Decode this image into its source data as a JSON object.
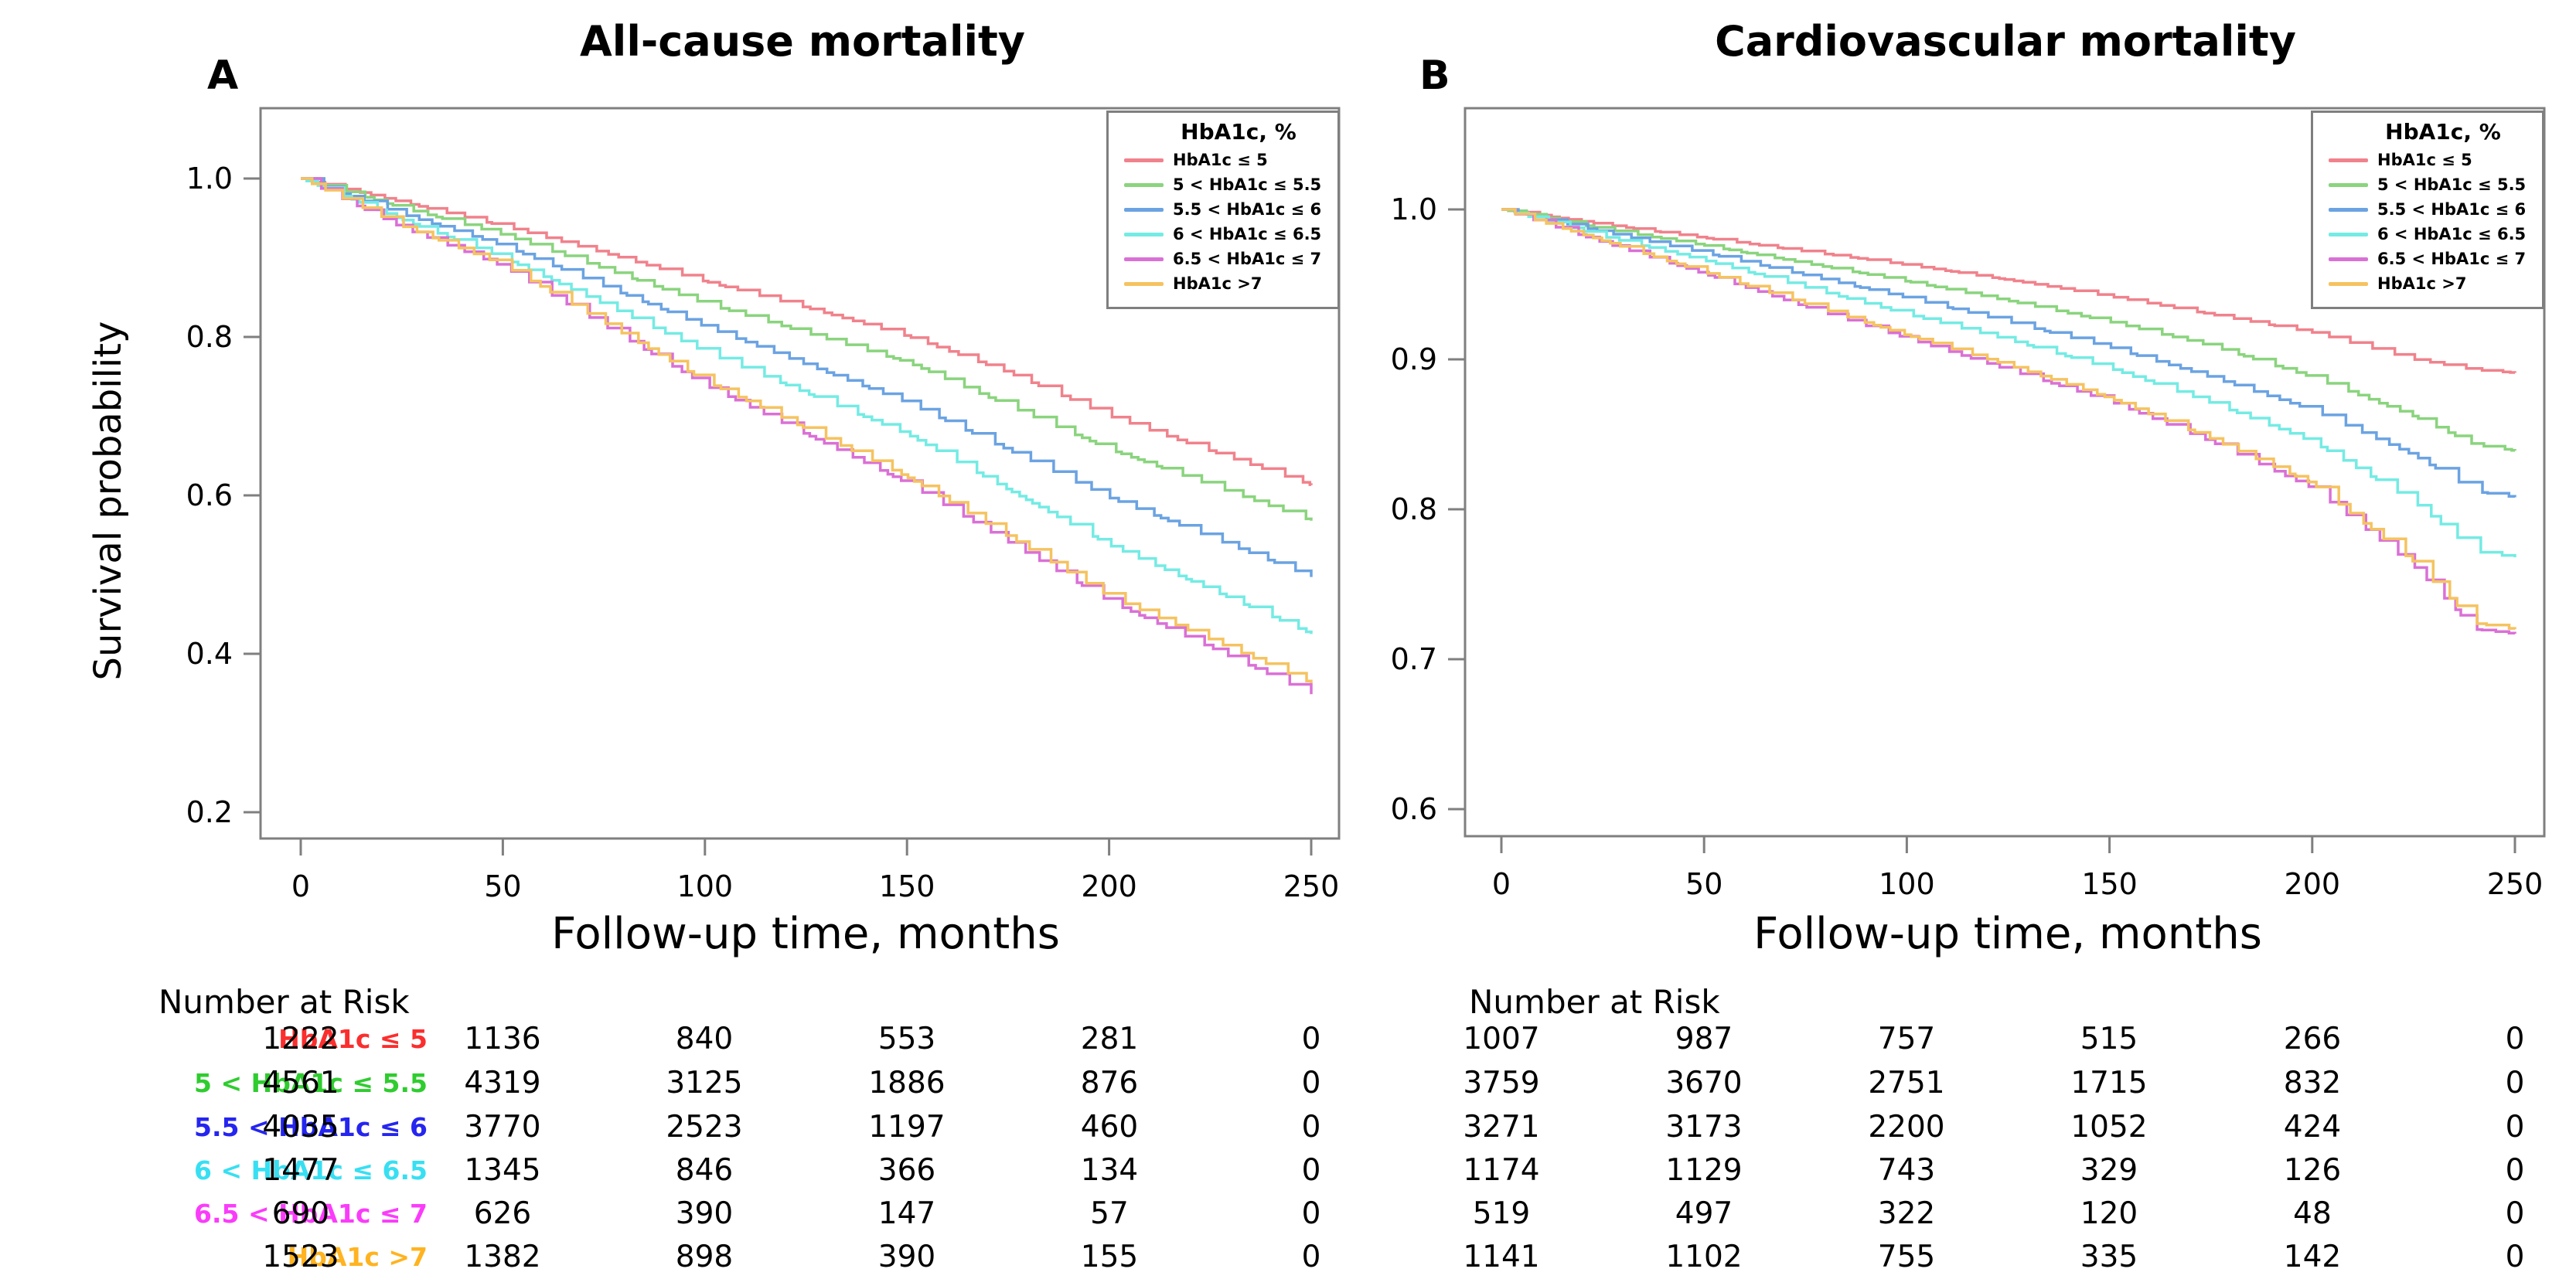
{
  "figure": {
    "background": "#ffffff",
    "frame_color": "#7f7f7f",
    "text_color": "#000000",
    "panels": [
      {
        "label": "A",
        "title": "All-cause mortality"
      },
      {
        "label": "B",
        "title": "Cardiovascular mortality"
      }
    ]
  },
  "legend": {
    "title": "HbA1c, %",
    "entries": [
      {
        "label": "HbA1c ≤ 5",
        "line_color": "#f0828c",
        "table_color": "#fb2e2e"
      },
      {
        "label": "5 < HbA1c ≤ 5.5",
        "line_color": "#8ad47e",
        "table_color": "#2fcc2f"
      },
      {
        "label": "5.5 < HbA1c ≤ 6",
        "line_color": "#6ba3e2",
        "table_color": "#2525f0"
      },
      {
        "label": "6 < HbA1c ≤ 6.5",
        "line_color": "#74ebe4",
        "table_color": "#38dff2"
      },
      {
        "label": "6.5 < HbA1c ≤ 7",
        "line_color": "#da70d6",
        "table_color": "#fa3cfa"
      },
      {
        "label": "HbA1c >7",
        "line_color": "#f5c360",
        "table_color": "#ffb320"
      }
    ]
  },
  "chart_data": [
    {
      "type": "line",
      "subtype": "kaplan-meier-step",
      "panel": "A",
      "title": "All-cause mortality",
      "xlabel": "Follow-up time, months",
      "ylabel": "Survival probability",
      "xlim": [
        0,
        250
      ],
      "ylim": [
        0.15,
        1.06
      ],
      "xticks": [
        0,
        50,
        100,
        150,
        200,
        250
      ],
      "yticks": [
        1.0,
        0.8,
        0.6,
        0.4,
        0.2
      ],
      "grid": false,
      "legend_position": "top-right",
      "x_anchors": [
        0,
        25,
        50,
        75,
        100,
        125,
        150,
        175,
        200,
        225,
        250
      ],
      "series": [
        {
          "name": "HbA1c ≤ 5",
          "values": [
            1.0,
            0.97,
            0.94,
            0.906,
            0.87,
            0.837,
            0.801,
            0.755,
            0.7,
            0.656,
            0.613
          ]
        },
        {
          "name": "5 < HbA1c ≤ 5.5",
          "values": [
            1.0,
            0.963,
            0.929,
            0.886,
            0.842,
            0.805,
            0.768,
            0.713,
            0.658,
            0.613,
            0.568
          ]
        },
        {
          "name": "5.5 < HbA1c ≤ 6",
          "values": [
            1.0,
            0.955,
            0.915,
            0.864,
            0.813,
            0.765,
            0.717,
            0.657,
            0.597,
            0.547,
            0.497
          ]
        },
        {
          "name": "6 < HbA1c ≤ 6.5",
          "values": [
            1.0,
            0.948,
            0.9,
            0.841,
            0.781,
            0.729,
            0.677,
            0.607,
            0.537,
            0.481,
            0.425
          ]
        },
        {
          "name": "6.5 < HbA1c ≤ 7",
          "values": [
            1.0,
            0.938,
            0.889,
            0.814,
            0.739,
            0.677,
            0.615,
            0.541,
            0.466,
            0.408,
            0.349
          ]
        },
        {
          "name": "HbA1c >7",
          "values": [
            1.0,
            0.94,
            0.891,
            0.818,
            0.744,
            0.684,
            0.623,
            0.548,
            0.472,
            0.418,
            0.363
          ]
        }
      ],
      "number_at_risk": {
        "header": "Number at Risk",
        "times": [
          0,
          50,
          100,
          150,
          200,
          250
        ],
        "rows": [
          {
            "label": "HbA1c ≤ 5",
            "counts": [
              1222,
              1136,
              840,
              553,
              281,
              0
            ]
          },
          {
            "label": "5 < HbA1c ≤ 5.5",
            "counts": [
              4561,
              4319,
              3125,
              1886,
              876,
              0
            ]
          },
          {
            "label": "5.5 < HbA1c ≤ 6",
            "counts": [
              4035,
              3770,
              2523,
              1197,
              460,
              0
            ]
          },
          {
            "label": "6 < HbA1c ≤ 6.5",
            "counts": [
              1477,
              1345,
              846,
              366,
              134,
              0
            ]
          },
          {
            "label": "6.5 < HbA1c ≤ 7",
            "counts": [
              690,
              626,
              390,
              147,
              57,
              0
            ]
          },
          {
            "label": "HbA1c >7",
            "counts": [
              1523,
              1382,
              898,
              390,
              155,
              0
            ]
          }
        ]
      }
    },
    {
      "type": "line",
      "subtype": "kaplan-meier-step",
      "panel": "B",
      "title": "Cardiovascular mortality",
      "xlabel": "Follow-up time, months",
      "ylabel": null,
      "xlim": [
        0,
        250
      ],
      "ylim": [
        0.58,
        1.06
      ],
      "xticks": [
        0,
        50,
        100,
        150,
        200,
        250
      ],
      "yticks": [
        1.0,
        0.9,
        0.8,
        0.7,
        0.6
      ],
      "grid": false,
      "legend_position": "top-right",
      "x_anchors": [
        0,
        25,
        50,
        75,
        100,
        125,
        150,
        175,
        200,
        225,
        240,
        250
      ],
      "series": [
        {
          "name": "HbA1c ≤ 5",
          "values": [
            1.0,
            0.99,
            0.981,
            0.972,
            0.963,
            0.953,
            0.942,
            0.93,
            0.918,
            0.9,
            0.893,
            0.891
          ]
        },
        {
          "name": "5 < HbA1c ≤ 5.5",
          "values": [
            1.0,
            0.987,
            0.976,
            0.964,
            0.952,
            0.939,
            0.925,
            0.909,
            0.888,
            0.862,
            0.843,
            0.839
          ]
        },
        {
          "name": "5.5 < HbA1c ≤ 6",
          "values": [
            1.0,
            0.985,
            0.971,
            0.956,
            0.941,
            0.925,
            0.908,
            0.888,
            0.866,
            0.836,
            0.812,
            0.808
          ]
        },
        {
          "name": "6 < HbA1c ≤ 6.5",
          "values": [
            1.0,
            0.982,
            0.966,
            0.948,
            0.93,
            0.913,
            0.894,
            0.871,
            0.845,
            0.805,
            0.772,
            0.768
          ]
        },
        {
          "name": "6.5 < HbA1c ≤ 7",
          "values": [
            1.0,
            0.978,
            0.957,
            0.935,
            0.914,
            0.893,
            0.872,
            0.845,
            0.814,
            0.762,
            0.72,
            0.717
          ]
        },
        {
          "name": "HbA1c >7",
          "values": [
            1.0,
            0.979,
            0.958,
            0.937,
            0.916,
            0.896,
            0.874,
            0.847,
            0.817,
            0.765,
            0.724,
            0.72
          ]
        }
      ],
      "number_at_risk": {
        "header": "Number at Risk",
        "times": [
          0,
          50,
          100,
          150,
          200,
          250
        ],
        "rows": [
          {
            "label": "HbA1c ≤ 5",
            "counts": [
              1007,
              987,
              757,
              515,
              266,
              0
            ]
          },
          {
            "label": "5 < HbA1c ≤ 5.5",
            "counts": [
              3759,
              3670,
              2751,
              1715,
              832,
              0
            ]
          },
          {
            "label": "5.5 < HbA1c ≤ 6",
            "counts": [
              3271,
              3173,
              2200,
              1052,
              424,
              0
            ]
          },
          {
            "label": "6 < HbA1c ≤ 6.5",
            "counts": [
              1174,
              1129,
              743,
              329,
              126,
              0
            ]
          },
          {
            "label": "6.5 < HbA1c ≤ 7",
            "counts": [
              519,
              497,
              322,
              120,
              48,
              0
            ]
          },
          {
            "label": "HbA1c >7",
            "counts": [
              1141,
              1102,
              755,
              335,
              142,
              0
            ]
          }
        ]
      }
    }
  ]
}
